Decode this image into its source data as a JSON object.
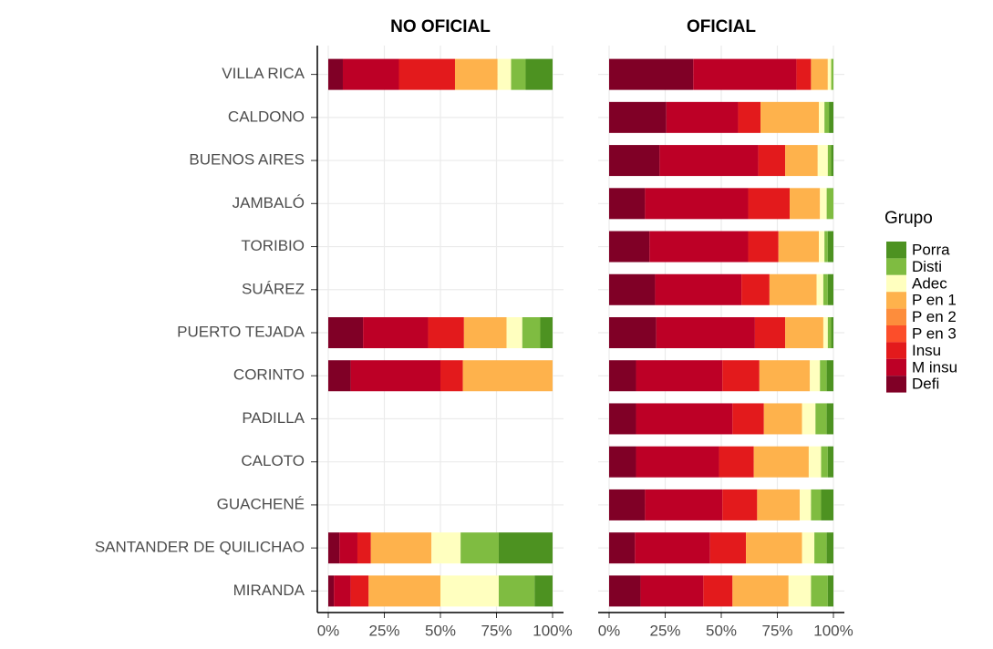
{
  "chart_data": [
    {
      "type": "bar",
      "orientation": "horizontal",
      "stacked": true,
      "title": "NO OFICIAL",
      "legend_title": "Grupo",
      "legend": "right",
      "categories": [
        "VILLA RICA",
        "CALDONO",
        "BUENOS AIRES",
        "JAMBALÓ",
        "TORIBIO",
        "SUÁREZ",
        "PUERTO TEJADA",
        "CORINTO",
        "PADILLA",
        "CALOTO",
        "GUACHENÉ",
        "SANTANDER DE QUILICHAO",
        "MIRANDA"
      ],
      "xlim": [
        0,
        100
      ],
      "xticks": [
        {
          "value": 0,
          "label": "0%"
        },
        {
          "value": 25,
          "label": "25%"
        },
        {
          "value": 50,
          "label": "50%"
        },
        {
          "value": 75,
          "label": "75%"
        },
        {
          "value": 100,
          "label": "100%"
        }
      ],
      "series": [
        {
          "name": "Defi",
          "color": "#800026",
          "values": [
            6.5,
            null,
            null,
            null,
            null,
            null,
            15.5,
            10,
            null,
            null,
            null,
            5,
            2.5
          ]
        },
        {
          "name": "M insu",
          "color": "#bd0026",
          "values": [
            25,
            null,
            null,
            null,
            null,
            null,
            29,
            40,
            null,
            null,
            null,
            8,
            7.5
          ]
        },
        {
          "name": "Insu",
          "color": "#e31a1c",
          "values": [
            25,
            null,
            null,
            null,
            null,
            null,
            16,
            10,
            null,
            null,
            null,
            6,
            8
          ]
        },
        {
          "name": "P en 3",
          "color": "#fc4e2a",
          "values": [
            0,
            null,
            null,
            null,
            null,
            null,
            0,
            0,
            null,
            null,
            null,
            0,
            0
          ]
        },
        {
          "name": "P en 2",
          "color": "#fd8d3c",
          "values": [
            0,
            null,
            null,
            null,
            null,
            null,
            0,
            0,
            null,
            null,
            null,
            0,
            0
          ]
        },
        {
          "name": "P en 1",
          "color": "#feb24c",
          "values": [
            19,
            null,
            null,
            null,
            null,
            null,
            19,
            40,
            null,
            null,
            null,
            27,
            32
          ]
        },
        {
          "name": "Adec",
          "color": "#ffffbf",
          "values": [
            6,
            null,
            null,
            null,
            null,
            null,
            7,
            0,
            null,
            null,
            null,
            13,
            26
          ]
        },
        {
          "name": "Disti",
          "color": "#7fbc41",
          "values": [
            6.5,
            null,
            null,
            null,
            null,
            null,
            8,
            0,
            null,
            null,
            null,
            17,
            16
          ]
        },
        {
          "name": "Porra",
          "color": "#4d9221",
          "values": [
            12,
            null,
            null,
            null,
            null,
            null,
            5.5,
            0,
            null,
            null,
            null,
            24,
            8
          ]
        }
      ]
    },
    {
      "type": "bar",
      "orientation": "horizontal",
      "stacked": true,
      "title": "OFICIAL",
      "xlim": [
        0,
        100
      ],
      "xticks": [
        {
          "value": 0,
          "label": "0%"
        },
        {
          "value": 25,
          "label": "25%"
        },
        {
          "value": 50,
          "label": "50%"
        },
        {
          "value": 75,
          "label": "75%"
        },
        {
          "value": 100,
          "label": "100%"
        }
      ],
      "series": [
        {
          "name": "Defi",
          "color": "#800026",
          "values": [
            37.5,
            25.5,
            22.5,
            16,
            18,
            20.5,
            21,
            12,
            12,
            12,
            16,
            11.5,
            14
          ]
        },
        {
          "name": "M insu",
          "color": "#bd0026",
          "values": [
            46,
            32,
            44,
            46,
            44,
            38.5,
            44,
            38.5,
            43,
            37,
            34.5,
            33.5,
            28
          ]
        },
        {
          "name": "Insu",
          "color": "#e31a1c",
          "values": [
            6.5,
            10,
            12,
            18.5,
            13.5,
            12.5,
            13.5,
            16.5,
            14,
            15.5,
            15.5,
            16,
            13
          ]
        },
        {
          "name": "P en 3",
          "color": "#fc4e2a",
          "values": [
            0,
            0,
            0,
            0,
            0,
            0,
            0,
            0,
            0,
            0,
            0,
            0,
            0
          ]
        },
        {
          "name": "P en 2",
          "color": "#fd8d3c",
          "values": [
            0,
            0,
            0,
            0,
            0,
            0,
            0,
            0,
            0,
            0,
            0,
            0,
            0
          ]
        },
        {
          "name": "P en 1",
          "color": "#feb24c",
          "values": [
            7.5,
            26,
            14.5,
            13.5,
            18,
            21,
            17,
            22.5,
            17,
            24.5,
            19,
            25,
            25
          ]
        },
        {
          "name": "Adec",
          "color": "#ffffbf",
          "values": [
            1.5,
            2.5,
            4.5,
            3,
            2.5,
            3,
            2,
            4.5,
            6,
            5.5,
            5,
            5.5,
            10
          ]
        },
        {
          "name": "Disti",
          "color": "#7fbc41",
          "values": [
            1,
            2,
            1.5,
            3,
            1.5,
            2,
            1.5,
            3,
            5,
            3,
            4.5,
            5.5,
            7.5
          ]
        },
        {
          "name": "Porra",
          "color": "#4d9221",
          "values": [
            0,
            2,
            1,
            0,
            2.5,
            2.5,
            1,
            3,
            3,
            2.5,
            5.5,
            3,
            2.5
          ]
        }
      ]
    }
  ]
}
